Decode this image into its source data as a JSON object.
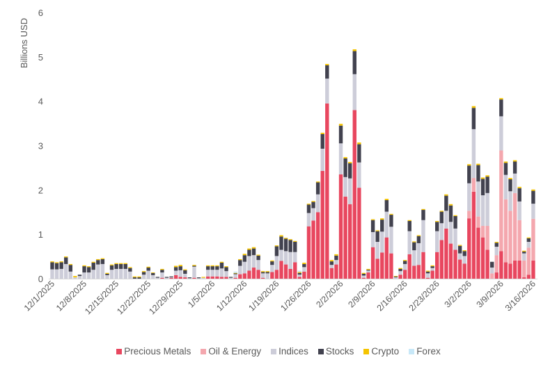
{
  "chart_data": {
    "type": "bar",
    "stacked": true,
    "title": "",
    "xlabel": "",
    "ylabel": "Billions USD",
    "ylim": [
      0,
      6
    ],
    "yticks": [
      "0",
      "1",
      "2",
      "3",
      "4",
      "5",
      "6"
    ],
    "grid": false,
    "legend_position": "bottom",
    "xticks": [
      "12/1/2025",
      "12/8/2025",
      "12/15/2025",
      "12/22/2025",
      "12/29/2025",
      "1/5/2026",
      "1/12/2026",
      "1/19/2026",
      "1/26/2026",
      "2/2/2026",
      "2/9/2026",
      "2/16/2026",
      "2/23/2026",
      "3/2/2026",
      "3/9/2026",
      "3/16/2026"
    ],
    "categories": [
      "12/1/2025",
      "12/2/2025",
      "12/3/2025",
      "12/4/2025",
      "12/5/2025",
      "12/6/2025",
      "12/7/2025",
      "12/8/2025",
      "12/9/2025",
      "12/10/2025",
      "12/11/2025",
      "12/12/2025",
      "12/13/2025",
      "12/14/2025",
      "12/15/2025",
      "12/16/2025",
      "12/17/2025",
      "12/18/2025",
      "12/19/2025",
      "12/20/2025",
      "12/21/2025",
      "12/22/2025",
      "12/23/2025",
      "12/24/2025",
      "12/25/2025",
      "12/26/2025",
      "12/27/2025",
      "12/28/2025",
      "12/29/2025",
      "12/30/2025",
      "12/31/2025",
      "1/1/2026",
      "1/2/2026",
      "1/3/2026",
      "1/4/2026",
      "1/5/2026",
      "1/6/2026",
      "1/7/2026",
      "1/8/2026",
      "1/9/2026",
      "1/10/2026",
      "1/11/2026",
      "1/12/2026",
      "1/13/2026",
      "1/14/2026",
      "1/15/2026",
      "1/16/2026",
      "1/17/2026",
      "1/18/2026",
      "1/19/2026",
      "1/20/2026",
      "1/21/2026",
      "1/22/2026",
      "1/23/2026",
      "1/24/2026",
      "1/25/2026",
      "1/26/2026",
      "1/27/2026",
      "1/28/2026",
      "1/29/2026",
      "1/30/2026",
      "1/31/2026",
      "2/1/2026",
      "2/2/2026",
      "2/3/2026",
      "2/4/2026",
      "2/5/2026",
      "2/6/2026",
      "2/7/2026",
      "2/8/2026",
      "2/9/2026",
      "2/10/2026",
      "2/11/2026",
      "2/12/2026",
      "2/13/2026",
      "2/14/2026",
      "2/15/2026",
      "2/16/2026",
      "2/17/2026",
      "2/18/2026",
      "2/19/2026",
      "2/20/2026",
      "2/21/2026",
      "2/22/2026",
      "2/23/2026",
      "2/24/2026",
      "2/25/2026",
      "2/26/2026",
      "2/27/2026",
      "2/28/2026",
      "3/1/2026",
      "3/2/2026",
      "3/3/2026",
      "3/4/2026",
      "3/5/2026",
      "3/6/2026",
      "3/7/2026",
      "3/8/2026",
      "3/9/2026",
      "3/10/2026",
      "3/11/2026",
      "3/12/2026",
      "3/13/2026",
      "3/14/2026",
      "3/15/2026",
      "3/16/2026"
    ],
    "series": [
      {
        "name": "Precious Metals",
        "color": "#E8475F",
        "values": [
          0,
          0,
          0,
          0,
          0,
          0,
          0,
          0,
          0,
          0,
          0,
          0,
          0,
          0,
          0,
          0,
          0,
          0,
          0,
          0,
          0,
          0,
          0,
          0,
          0.02,
          0,
          0.02,
          0.08,
          0.04,
          0.03,
          0,
          0.02,
          0,
          0,
          0.05,
          0.05,
          0.05,
          0.04,
          0.04,
          0,
          0.02,
          0.1,
          0.12,
          0.18,
          0.25,
          0.2,
          0.02,
          0,
          0.15,
          0.2,
          0.4,
          0.32,
          0.22,
          0.37,
          0.04,
          0.16,
          1.18,
          1.31,
          1.5,
          2.43,
          3.95,
          0.24,
          0.32,
          2.35,
          1.85,
          1.68,
          3.8,
          2.05,
          0.02,
          0.14,
          0.71,
          0.45,
          0.59,
          0.93,
          0.57,
          0,
          0.09,
          0.2,
          0.55,
          0.29,
          0.31,
          0.6,
          0.02,
          0.18,
          0.6,
          0.87,
          1.13,
          0.79,
          0.65,
          0.43,
          0.34,
          1.36,
          1.96,
          1.15,
          0.93,
          0.65,
          0,
          0.14,
          0.62,
          0.37,
          0.34,
          0.41,
          0.41,
          0.03,
          0.09,
          0.41
        ]
      },
      {
        "name": "Oil & Energy",
        "color": "#F4A7AE",
        "values": [
          0,
          0,
          0,
          0,
          0,
          0,
          0,
          0,
          0,
          0,
          0,
          0,
          0,
          0,
          0,
          0,
          0,
          0,
          0,
          0,
          0,
          0,
          0,
          0,
          0,
          0,
          0,
          0,
          0,
          0,
          0,
          0,
          0,
          0,
          0,
          0,
          0,
          0,
          0,
          0,
          0,
          0,
          0,
          0,
          0,
          0,
          0,
          0,
          0,
          0,
          0,
          0,
          0,
          0,
          0,
          0,
          0,
          0,
          0,
          0,
          0,
          0,
          0,
          0,
          0,
          0,
          0,
          0,
          0,
          0,
          0,
          0,
          0,
          0,
          0,
          0,
          0,
          0,
          0,
          0,
          0,
          0,
          0,
          0,
          0,
          0,
          0,
          0,
          0,
          0,
          0,
          0.17,
          0.31,
          0.25,
          0.26,
          0.54,
          0.12,
          0.39,
          2.27,
          1.42,
          1.19,
          1.52,
          0.91,
          0.38,
          0.61,
          0.94
        ]
      },
      {
        "name": "Indices",
        "color": "#CDCDD9",
        "values": [
          0.21,
          0.21,
          0.22,
          0.33,
          0.16,
          0.03,
          0.06,
          0.14,
          0.14,
          0.2,
          0.32,
          0.33,
          0.08,
          0.2,
          0.22,
          0.22,
          0.22,
          0.16,
          0,
          0,
          0.09,
          0.18,
          0.08,
          0.02,
          0.12,
          0.02,
          0.01,
          0.1,
          0.15,
          0.08,
          0.01,
          0.25,
          0.01,
          0.02,
          0.15,
          0.15,
          0.15,
          0.19,
          0.13,
          0.02,
          0.08,
          0.19,
          0.26,
          0.33,
          0.28,
          0.22,
          0.1,
          0.12,
          0.16,
          0.31,
          0.25,
          0.3,
          0.38,
          0.23,
          0.05,
          0.1,
          0.3,
          0.28,
          0.4,
          0.5,
          0.56,
          0.07,
          0.1,
          0.7,
          0.44,
          0.58,
          0.81,
          0.57,
          0.05,
          0.04,
          0.34,
          0.38,
          0.47,
          0.58,
          0.6,
          0.03,
          0.08,
          0.13,
          0.52,
          0.35,
          0.49,
          0.72,
          0.1,
          0.06,
          0.47,
          0.38,
          0.4,
          0.49,
          0.48,
          0.14,
          0.17,
          0.62,
          1.1,
          0.79,
          0.69,
          0.74,
          0.13,
          0.19,
          0.77,
          0.55,
          0.44,
          0.44,
          0.42,
          0.16,
          0.13,
          0.34
        ]
      },
      {
        "name": "Stocks",
        "color": "#42424F",
        "values": [
          0.16,
          0.14,
          0.15,
          0.15,
          0.15,
          0,
          0.03,
          0.14,
          0.12,
          0.16,
          0.1,
          0.11,
          0.03,
          0.1,
          0.11,
          0.11,
          0.11,
          0.08,
          0.03,
          0.03,
          0.06,
          0.07,
          0.05,
          0.02,
          0.06,
          0.02,
          0.02,
          0.08,
          0.09,
          0.08,
          0.02,
          0.02,
          0.02,
          0,
          0.08,
          0.08,
          0.08,
          0.13,
          0.09,
          0.02,
          0.02,
          0.13,
          0.15,
          0.14,
          0.15,
          0.1,
          0.03,
          0.03,
          0.08,
          0.22,
          0.3,
          0.28,
          0.27,
          0.23,
          0.04,
          0.07,
          0.19,
          0.14,
          0.27,
          0.33,
          0.3,
          0.08,
          0.1,
          0.4,
          0.42,
          0.34,
          0.52,
          0.41,
          0.04,
          0.02,
          0.27,
          0.24,
          0.27,
          0.26,
          0.27,
          0.02,
          0.05,
          0.07,
          0.23,
          0.18,
          0.16,
          0.23,
          0.04,
          0.04,
          0.21,
          0.26,
          0.34,
          0.37,
          0.28,
          0.17,
          0.11,
          0.4,
          0.48,
          0.37,
          0.37,
          0.37,
          0.13,
          0.09,
          0.38,
          0.27,
          0.27,
          0.27,
          0.3,
          0.04,
          0.08,
          0.29
        ]
      },
      {
        "name": "Crypto",
        "color": "#F5C400",
        "values": [
          0.02,
          0.02,
          0.02,
          0.02,
          0.02,
          0.03,
          0,
          0.02,
          0.02,
          0.02,
          0.02,
          0.02,
          0.02,
          0.02,
          0.02,
          0.02,
          0.02,
          0.02,
          0.02,
          0.02,
          0.02,
          0.02,
          0.01,
          0,
          0.02,
          0,
          0,
          0.03,
          0.03,
          0.02,
          0,
          0.02,
          0,
          0.02,
          0.02,
          0.02,
          0.02,
          0.02,
          0.02,
          0,
          0.01,
          0.02,
          0.03,
          0.03,
          0.03,
          0.02,
          0.02,
          0.02,
          0.02,
          0.02,
          0.03,
          0.02,
          0.02,
          0.02,
          0.02,
          0.03,
          0.02,
          0.02,
          0.02,
          0.03,
          0.03,
          0.03,
          0.03,
          0.04,
          0.03,
          0.03,
          0.04,
          0.04,
          0.02,
          0.02,
          0.02,
          0.02,
          0.03,
          0.03,
          0.02,
          0.01,
          0.02,
          0.02,
          0.02,
          0.02,
          0.02,
          0.02,
          0.02,
          0.02,
          0.02,
          0.02,
          0.03,
          0.03,
          0.02,
          0.02,
          0.02,
          0.03,
          0.04,
          0.03,
          0.03,
          0.03,
          0,
          0.02,
          0.03,
          0.03,
          0.03,
          0.03,
          0.03,
          0.02,
          0.02,
          0.03
        ]
      },
      {
        "name": "Forex",
        "color": "#C8E8F8",
        "values": [
          0,
          0,
          0,
          0,
          0,
          0,
          0,
          0,
          0,
          0,
          0,
          0,
          0,
          0,
          0,
          0,
          0,
          0,
          0,
          0,
          0,
          0,
          0,
          0,
          0,
          0,
          0,
          0,
          0,
          0,
          0,
          0,
          0,
          0,
          0,
          0,
          0,
          0,
          0,
          0,
          0.03,
          0,
          0,
          0,
          0,
          0,
          0,
          0,
          0,
          0,
          0,
          0,
          0,
          0,
          0.03,
          0,
          0,
          0,
          0,
          0,
          0,
          0,
          0,
          0,
          0,
          0,
          0,
          0,
          0,
          0,
          0,
          0,
          0,
          0,
          0,
          0,
          0,
          0,
          0,
          0,
          0,
          0,
          0,
          0,
          0,
          0,
          0,
          0,
          0,
          0,
          0,
          0,
          0,
          0,
          0,
          0,
          0,
          0,
          0,
          0,
          0,
          0,
          0,
          0,
          0,
          0
        ]
      }
    ]
  }
}
